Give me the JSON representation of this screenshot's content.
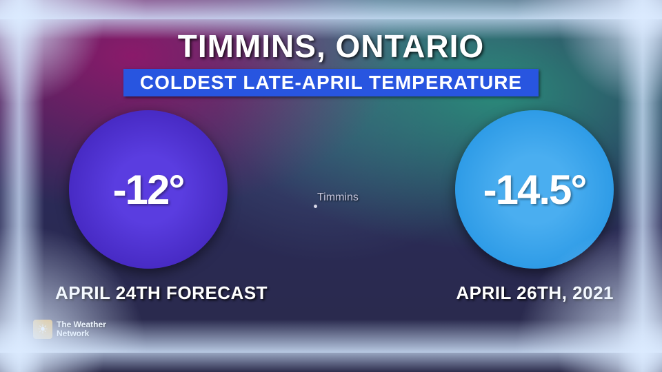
{
  "title": "TIMMINS, ONTARIO",
  "subtitle": "COLDEST LATE-APRIL TEMPERATURE",
  "subtitle_bg": "#2855e0",
  "map_label": "Timmins",
  "left_disc": {
    "value": "-12°",
    "caption": "APRIL 24TH FORECAST",
    "bg_inner": "#5a3de0",
    "bg_outer": "#3a1db0"
  },
  "right_disc": {
    "value": "-14.5°",
    "caption": "APRIL 26TH, 2021",
    "bg_inner": "#4aaef0",
    "bg_outer": "#1a8ee0"
  },
  "logo": {
    "line1": "The Weather",
    "line2": "Network"
  }
}
